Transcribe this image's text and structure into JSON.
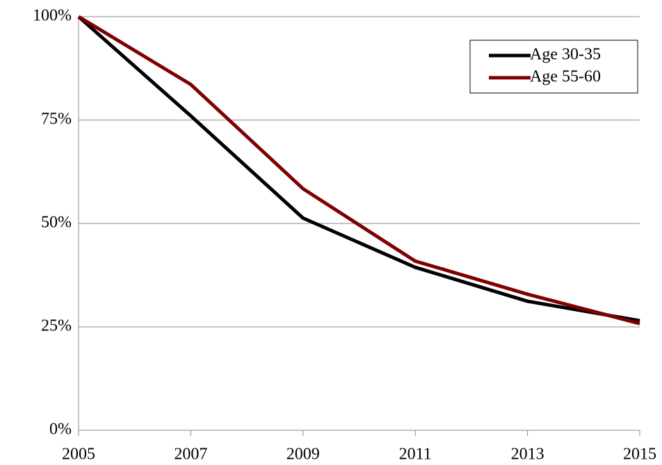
{
  "chart_data": {
    "type": "line",
    "x": [
      2005,
      2007,
      2009,
      2011,
      2013,
      2015
    ],
    "series": [
      {
        "name": "Age 30-35",
        "color": "#000000",
        "values": [
          100,
          76,
          51.3,
          39.4,
          31.2,
          26.5
        ]
      },
      {
        "name": "Age 55-60",
        "color": "#7f0000",
        "values": [
          100,
          83.6,
          58.4,
          40.9,
          32.9,
          25.8
        ]
      }
    ],
    "xlim": [
      2005,
      2015
    ],
    "xticks": [
      2005,
      2007,
      2009,
      2011,
      2013,
      2015
    ],
    "ylim": [
      0,
      100
    ],
    "yticks": [
      {
        "value": 0,
        "label": "0%"
      },
      {
        "value": 25,
        "label": "25%"
      },
      {
        "value": 50,
        "label": "50%"
      },
      {
        "value": 75,
        "label": "75%"
      },
      {
        "value": 100,
        "label": "100%"
      }
    ],
    "grid": true,
    "legend": "upper right"
  }
}
